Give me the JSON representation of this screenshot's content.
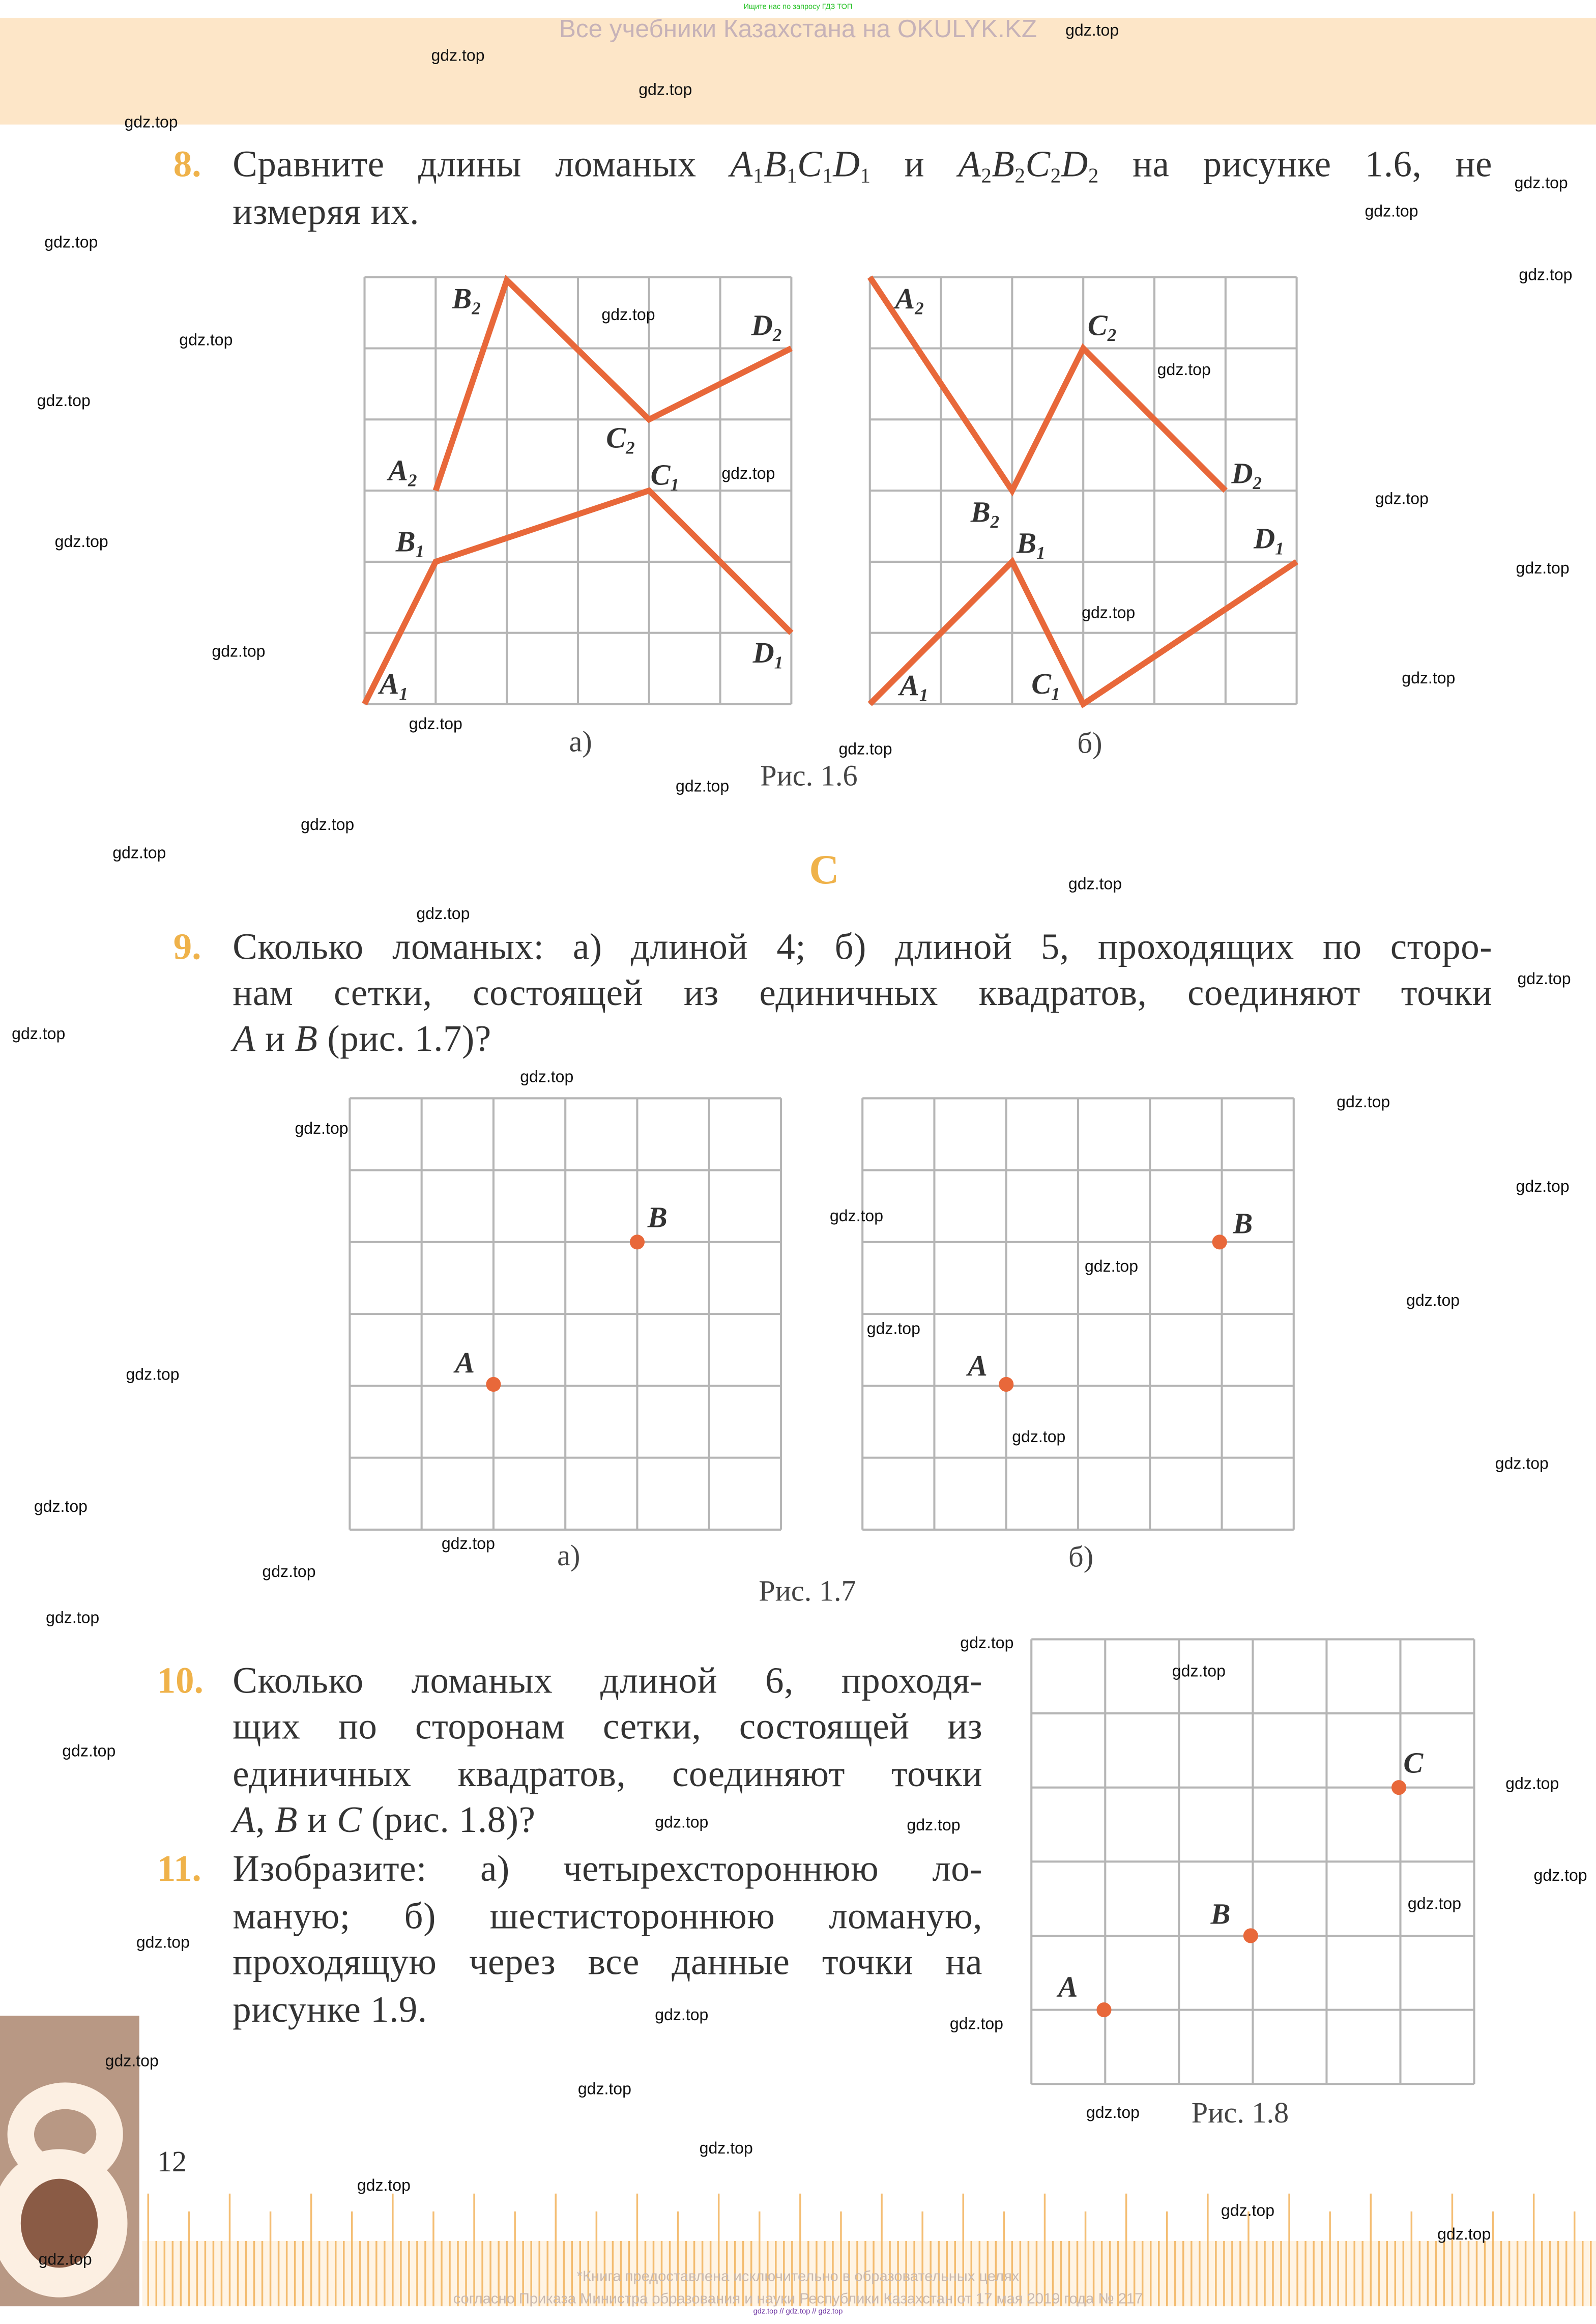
{
  "header": {
    "top_note": "Ищите нас по запросу ГДЗ ТОП",
    "site_title": "Все учебники Казахстана на OKULYK.KZ"
  },
  "watermark": {
    "text": "gdz.top"
  },
  "colors": {
    "accent_number": "#efb24a",
    "polyline": "#e8683a",
    "point": "#e8683a",
    "header_band": "#fde6c8"
  },
  "problems": [
    {
      "number": "8.",
      "lines": [
        [
          "Сравните длины ломаных ",
          {
            "v": "A",
            "s": "1"
          },
          {
            "v": "B",
            "s": "1"
          },
          {
            "v": "C",
            "s": "1"
          },
          {
            "v": "D",
            "s": "1"
          },
          " и ",
          {
            "v": "A",
            "s": "2"
          },
          {
            "v": "B",
            "s": "2"
          },
          {
            "v": "C",
            "s": "2"
          },
          {
            "v": "D",
            "s": "2"
          },
          " на рисунке 1.6, не"
        ],
        [
          "измеряя их."
        ]
      ]
    },
    {
      "number": "9.",
      "lines": [
        [
          "Сколько ломаных: а) длиной 4; б) длиной 5, проходящих по сторо-"
        ],
        [
          "нам сетки, состоящей из единичных квадратов, соединяют точки"
        ],
        [
          {
            "v": "A"
          },
          " и ",
          {
            "v": "B"
          },
          " (рис. 1.7)?"
        ]
      ]
    },
    {
      "number": "10.",
      "lines": [
        [
          "Сколько ломаных длиной 6, проходя-"
        ],
        [
          "щих по сторонам сетки, состоящей из"
        ],
        [
          "единичных квадратов, соединяют точки"
        ],
        [
          {
            "v": "A"
          },
          ", ",
          {
            "v": "B"
          },
          " и ",
          {
            "v": "C"
          },
          " (рис. 1.8)?"
        ]
      ]
    },
    {
      "number": "11.",
      "lines": [
        [
          "Изобразите: а) четырехстороннюю ло-"
        ],
        [
          "маную; б) шестистороннюю ломаную,"
        ],
        [
          "проходящую через все данные точки на"
        ],
        [
          "рисунке 1.9."
        ]
      ]
    }
  ],
  "section_label": "C",
  "figures": {
    "fig_1_6": {
      "caption": "Рис. 1.6",
      "parts": [
        {
          "label": "а)",
          "points": [
            {
              "v": "A",
              "s": "2"
            },
            {
              "v": "B",
              "s": "2"
            },
            {
              "v": "C",
              "s": "2"
            },
            {
              "v": "D",
              "s": "2"
            },
            {
              "v": "A",
              "s": "1"
            },
            {
              "v": "B",
              "s": "1"
            },
            {
              "v": "C",
              "s": "1"
            },
            {
              "v": "D",
              "s": "1"
            }
          ]
        },
        {
          "label": "б)",
          "points": [
            {
              "v": "A",
              "s": "2"
            },
            {
              "v": "B",
              "s": "2"
            },
            {
              "v": "C",
              "s": "2"
            },
            {
              "v": "D",
              "s": "2"
            },
            {
              "v": "A",
              "s": "1"
            },
            {
              "v": "B",
              "s": "1"
            },
            {
              "v": "C",
              "s": "1"
            },
            {
              "v": "D",
              "s": "1"
            }
          ]
        }
      ]
    },
    "fig_1_7": {
      "caption": "Рис. 1.7",
      "parts": [
        {
          "label": "а)",
          "points": [
            {
              "v": "A"
            },
            {
              "v": "B"
            }
          ]
        },
        {
          "label": "б)",
          "points": [
            {
              "v": "A"
            },
            {
              "v": "B"
            }
          ]
        }
      ]
    },
    "fig_1_8": {
      "caption": "Рис. 1.8",
      "points": [
        {
          "v": "A"
        },
        {
          "v": "B"
        },
        {
          "v": "C"
        }
      ]
    }
  },
  "footer": {
    "page_number": "12",
    "note_line1": "*Книга предоставлена исключительно в образовательных целях",
    "note_line2": "согласно Приказа Министра образования и науки Республики Казахстан от 17 мая 2019 года № 217",
    "bottom_links": "gdz.top // gdz.top // gdz.top"
  }
}
